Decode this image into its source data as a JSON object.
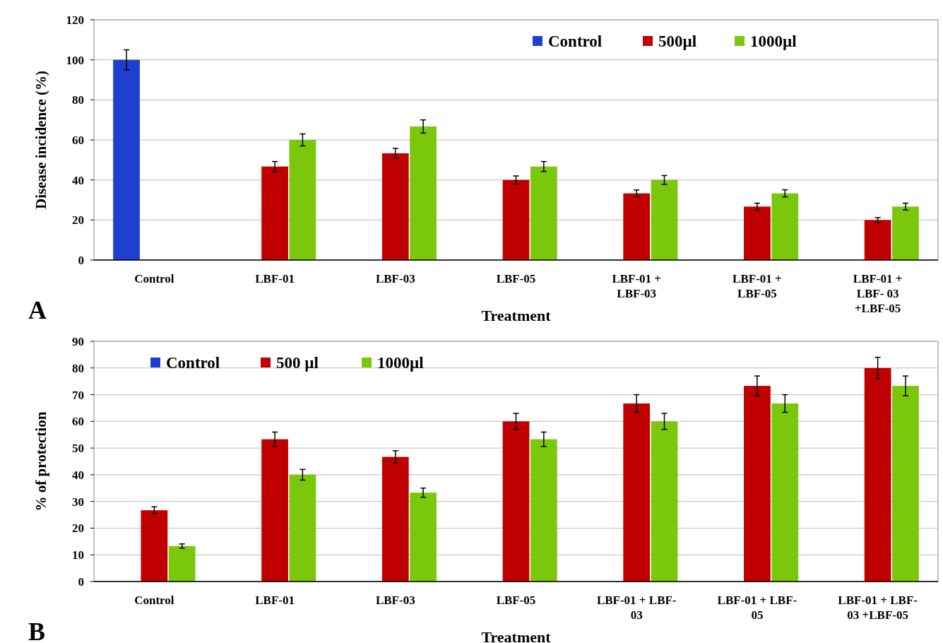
{
  "chart_data": [
    {
      "type": "bar",
      "xlabel": "Treatment",
      "ylabel": "Disease incidence (%)",
      "categories": [
        "Control",
        "LBF-01",
        "LBF-03",
        "LBF-05",
        "LBF-01 +\nLBF-03",
        "LBF-01 +\nLBF-05",
        "LBF-01 +\nLBF- 03\n+LBF-05"
      ],
      "series": [
        {
          "name": "Control",
          "color": "#1f3fd0",
          "values": [
            100,
            null,
            null,
            null,
            null,
            null,
            null
          ],
          "errors": [
            5,
            null,
            null,
            null,
            null,
            null,
            null
          ]
        },
        {
          "name": "500µl",
          "color": "#c00000",
          "values": [
            null,
            46.7,
            53.3,
            40,
            33.3,
            26.7,
            20
          ],
          "errors": [
            null,
            2.5,
            2.5,
            2,
            1.7,
            1.7,
            1.2
          ]
        },
        {
          "name": "1000µl",
          "color": "#7ac70c",
          "values": [
            null,
            60,
            66.7,
            46.7,
            40,
            33.3,
            26.7
          ],
          "errors": [
            null,
            3,
            3.3,
            2.5,
            2.2,
            1.8,
            1.7
          ]
        }
      ],
      "ylim": [
        0,
        120
      ],
      "yticks": [
        0,
        20,
        40,
        60,
        80,
        100,
        120
      ],
      "grid": "y",
      "legend": "top right",
      "annotations": [
        "A"
      ]
    },
    {
      "type": "bar",
      "xlabel": "Treatment",
      "ylabel": "% of protection",
      "categories": [
        "Control",
        "LBF-01",
        "LBF-03",
        "LBF-05",
        "LBF-01 + LBF-\n03",
        "LBF-01 + LBF-\n05",
        "LBF-01 + LBF-\n03 +LBF-05"
      ],
      "series": [
        {
          "name": "Control",
          "color": "#1f3fd0",
          "values": [
            null,
            null,
            null,
            null,
            null,
            null,
            null
          ]
        },
        {
          "name": "500 µl",
          "color": "#c00000",
          "values": [
            26.7,
            53.3,
            46.7,
            60,
            66.7,
            73.3,
            80
          ],
          "errors": [
            1.3,
            2.7,
            2.3,
            3,
            3.3,
            3.7,
            4
          ]
        },
        {
          "name": "1000µl",
          "color": "#7ac70c",
          "values": [
            13.3,
            40,
            33.3,
            53.3,
            60,
            66.7,
            73.3
          ],
          "errors": [
            0.8,
            2,
            1.7,
            2.7,
            3,
            3.3,
            3.7
          ]
        }
      ],
      "ylim": [
        0,
        90
      ],
      "yticks": [
        0,
        10,
        20,
        30,
        40,
        50,
        60,
        70,
        80,
        90
      ],
      "grid": "y",
      "legend": "top left",
      "annotations": [
        "B"
      ]
    }
  ]
}
